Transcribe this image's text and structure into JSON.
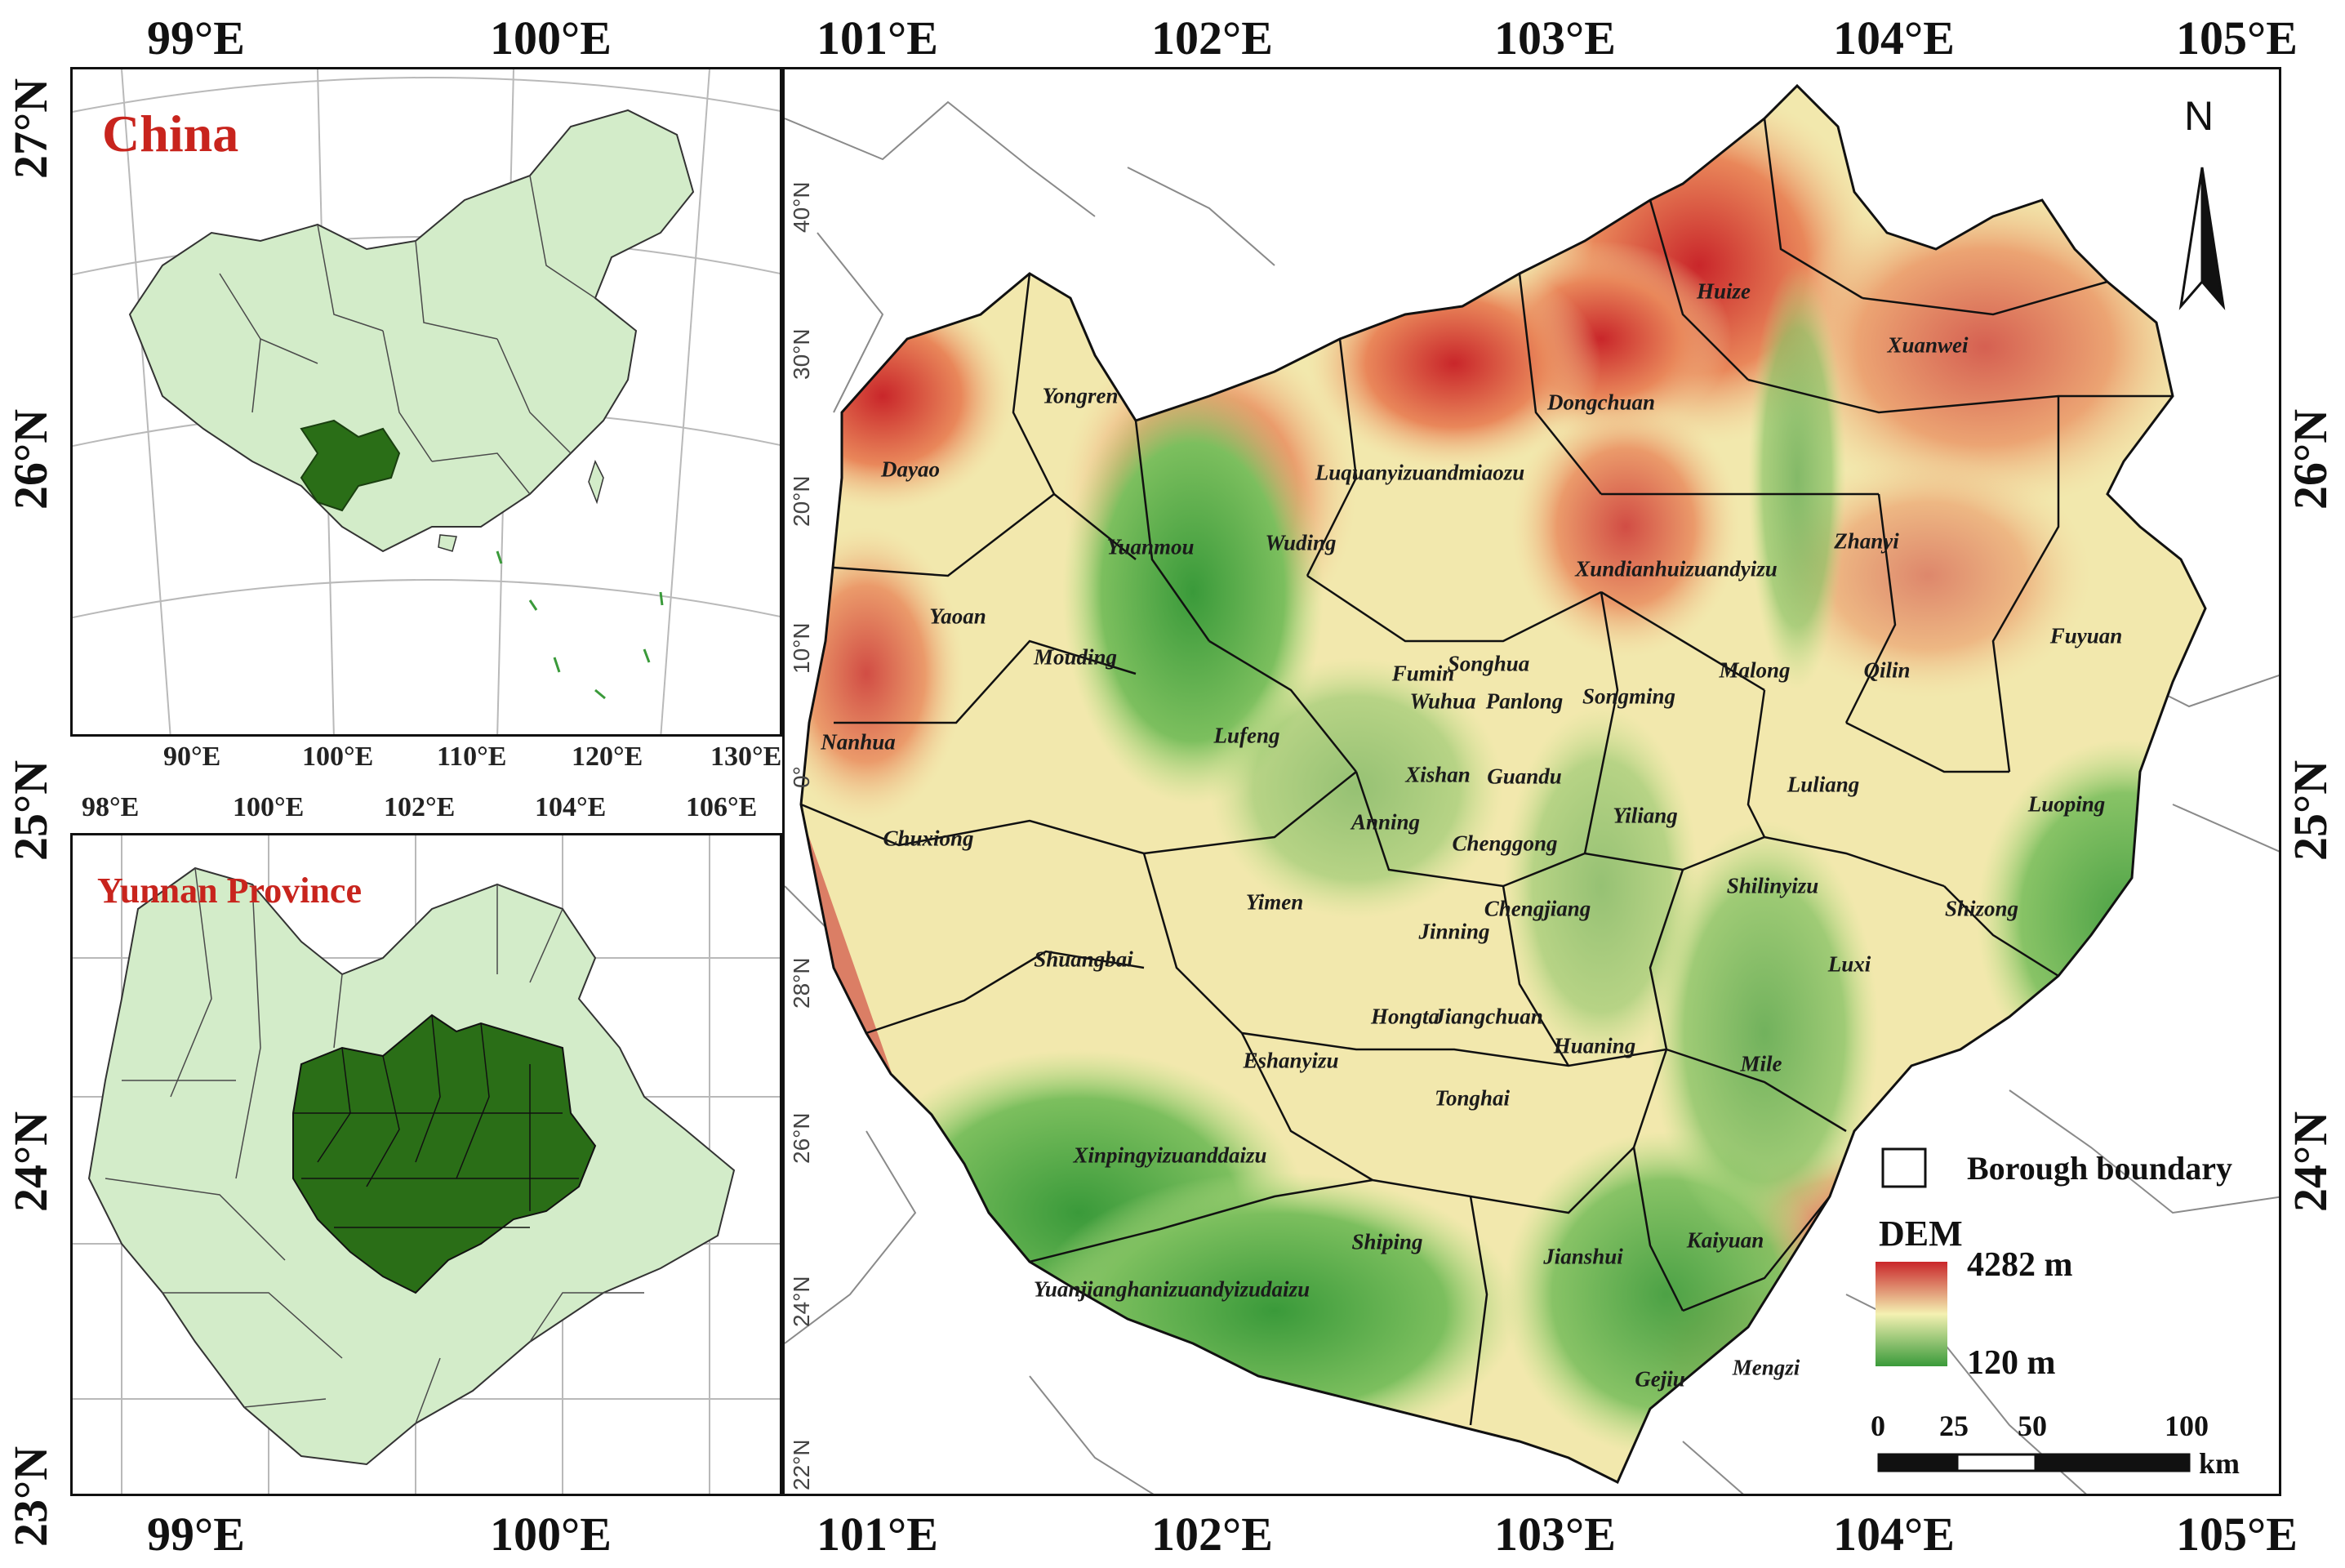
{
  "axes": {
    "top": [
      "99°E",
      "100°E",
      "101°E",
      "102°E",
      "103°E",
      "104°E",
      "105°E"
    ],
    "bottom": [
      "99°E",
      "100°E",
      "101°E",
      "102°E",
      "103°E",
      "104°E",
      "105°E"
    ],
    "left": [
      "27°N",
      "26°N",
      "25°N",
      "24°N",
      "23°N"
    ],
    "right": [
      "26°N",
      "25°N",
      "24°N"
    ]
  },
  "inset_china": {
    "title": "China",
    "lon_labels": [
      "90°E",
      "100°E",
      "110°E",
      "120°E",
      "130°E"
    ]
  },
  "inset_yunnan": {
    "title": "Yunnan Province",
    "lon_labels": [
      "98°E",
      "100°E",
      "102°E",
      "104°E",
      "106°E"
    ]
  },
  "main_map": {
    "inner_lat_labels": [
      "40°N",
      "30°N",
      "20°N",
      "10°N",
      "0°",
      "28°N",
      "26°N",
      "24°N",
      "22°N"
    ],
    "north_arrow": "N",
    "boroughs": [
      "Huize",
      "Xuanwei",
      "Yongren",
      "Dayao",
      "Dongchuan",
      "Luquanyizuandmiaozu",
      "Yuanmou",
      "Wuding",
      "Zhanyi",
      "Xundianhuizuandyizu",
      "Yaoan",
      "Mouding",
      "Fuyuan",
      "Malong",
      "Qilin",
      "Fumin",
      "Songming",
      "Songhua",
      "Wuhua",
      "Panlong",
      "Lufeng",
      "Nanhua",
      "Guandu",
      "Xishan",
      "Luliang",
      "Luoping",
      "Anning",
      "Chuxiong",
      "Yiliang",
      "Chenggong",
      "Shilinyizu",
      "Yimen",
      "Jinning",
      "Chengjiang",
      "Shizong",
      "Shuangbai",
      "Luxi",
      "Hongta",
      "Jiangchuan",
      "Huaning",
      "Mile",
      "Eshanyizu",
      "Tonghai",
      "Xinpingyizuanddaizu",
      "Shiping",
      "Jianshui",
      "Kaiyuan",
      "Yuanjianghanizuandyizudaizu",
      "Gejiu",
      "Mengzi"
    ]
  },
  "legend": {
    "boundary_label": "Borough boundary",
    "dem_title": "DEM",
    "dem_max": "4282 m",
    "dem_min": "120 m",
    "scale_ticks": [
      "0",
      "25",
      "50",
      "100"
    ],
    "scale_unit": "km",
    "colors": {
      "high": "#c9262a",
      "mid": "#f4f1b2",
      "low": "#3a9a3a"
    }
  },
  "colors": {
    "inset_highlight": "#2a6e17",
    "inset_fill": "#d3ecc9",
    "inset_title": "#c8241d"
  }
}
